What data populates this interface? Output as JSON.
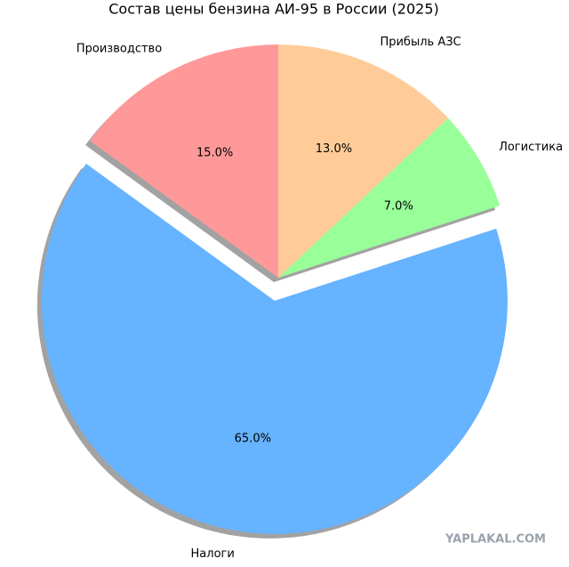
{
  "chart_data": {
    "type": "pie",
    "title": "Состав цены бензина АИ-95 в России (2025)",
    "categories": [
      "Производство",
      "Налоги",
      "Логистика",
      "Прибыль АЗС"
    ],
    "values": [
      15,
      65,
      7,
      13
    ],
    "value_labels": [
      "15.0%",
      "65.0%",
      "7.0%",
      "13.0%"
    ],
    "colors": [
      "#ff9999",
      "#66b3ff",
      "#99ff99",
      "#ffcc99"
    ],
    "explode": [
      0,
      0.1,
      0,
      0
    ],
    "startangle": 90,
    "shadow": true
  },
  "watermark": "YAPLAKAL.COM"
}
